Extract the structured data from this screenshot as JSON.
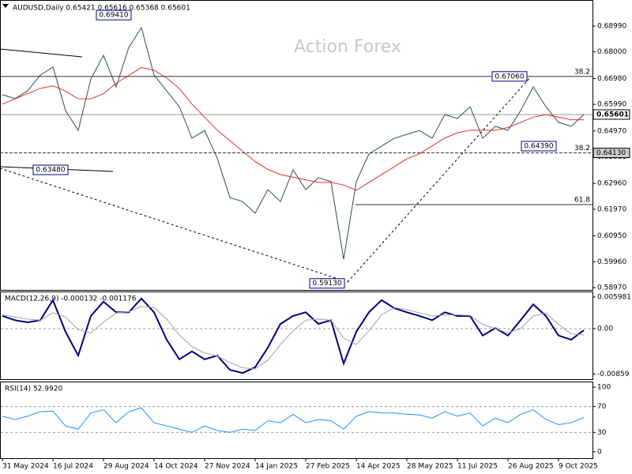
{
  "chart_data": [
    {
      "type": "line",
      "title": "AUDUSD,Daily 0.65421 0.65616 0.65368 0.65601",
      "watermark": "Action Forex",
      "categories": [
        "31 May 2024",
        null,
        null,
        null,
        "16 Jul 2024",
        null,
        null,
        null,
        "29 Aug 2024",
        null,
        null,
        null,
        "14 Oct 2024",
        null,
        null,
        null,
        "27 Nov 2024",
        null,
        null,
        null,
        "14 Jan 2025",
        null,
        null,
        null,
        "27 Feb 2025",
        null,
        null,
        null,
        "14 Apr 2025",
        null,
        null,
        null,
        "28 May 2025",
        null,
        null,
        null,
        "11 Jul 2025",
        null,
        null,
        null,
        "26 Aug 2025",
        null,
        null,
        null,
        "9 Oct 2025",
        null,
        null
      ],
      "series": [
        {
          "color": "#2f4f4f",
          "values": [
            0.6636,
            0.6621,
            0.6651,
            0.6711,
            0.6742,
            0.6575,
            0.6499,
            0.6696,
            0.6787,
            0.6666,
            0.6817,
            0.6893,
            0.6711,
            0.6651,
            0.659,
            0.6469,
            0.6499,
            0.6393,
            0.6242,
            0.6227,
            0.6182,
            0.6272,
            0.6227,
            0.6348,
            0.6272,
            0.6318,
            0.6303,
            0.6005,
            0.6303,
            0.6409,
            0.6439,
            0.6469,
            0.6484,
            0.6499,
            0.6469,
            0.656,
            0.6545,
            0.659,
            0.6469,
            0.6515,
            0.6499,
            0.6575,
            0.6666,
            0.659,
            0.653,
            0.6515,
            0.656
          ]
        },
        {
          "color": "#e03030",
          "values": [
            0.66,
            0.662,
            0.664,
            0.666,
            0.667,
            0.665,
            0.662,
            0.662,
            0.664,
            0.668,
            0.671,
            0.674,
            0.673,
            0.67,
            0.666,
            0.66,
            0.655,
            0.65,
            0.646,
            0.642,
            0.638,
            0.635,
            0.633,
            0.632,
            0.631,
            0.63,
            0.63,
            0.629,
            0.627,
            0.63,
            0.633,
            0.636,
            0.639,
            0.641,
            0.644,
            0.647,
            0.649,
            0.65,
            0.65,
            0.65,
            0.651,
            0.653,
            0.655,
            0.656,
            0.655,
            0.654,
            0.654
          ]
        }
      ],
      "ylim": [
        0.5888,
        0.69989
      ],
      "yticks": [
        {
          "value": 0.6899,
          "label": "0.68990"
        },
        {
          "value": 0.68,
          "label": "0.68000"
        },
        {
          "value": 0.6698,
          "label": "0.66980"
        },
        {
          "value": 0.6599,
          "label": "0.65990"
        },
        {
          "value": 0.6497,
          "label": "0.64970"
        },
        {
          "value": 0.6398,
          "label": "0.63980"
        },
        {
          "value": 0.6296,
          "label": "0.62960"
        },
        {
          "value": 0.6197,
          "label": "0.61970"
        },
        {
          "value": 0.6095,
          "label": "0.60950"
        },
        {
          "value": 0.5996,
          "label": "0.59960"
        },
        {
          "value": 0.5897,
          "label": "0.58970"
        }
      ],
      "levels": [
        {
          "value": 0.6706,
          "label": "38.2"
        },
        {
          "value": 0.6413,
          "label": "38.2"
        },
        {
          "value": 0.6215,
          "label": "61.8"
        }
      ],
      "annotations": [
        {
          "value": 0.6941,
          "label": "0.69410"
        },
        {
          "value": 0.6348,
          "label": "0.63480"
        },
        {
          "value": 0.5913,
          "label": "0.59130"
        },
        {
          "value": 0.6706,
          "label": "0.67060"
        },
        {
          "value": 0.6439,
          "label": "0.64390"
        }
      ],
      "axis_markers": [
        {
          "value": 0.65601,
          "label": "0.65601"
        },
        {
          "value": 0.6413,
          "label": "0.64130"
        }
      ]
    },
    {
      "type": "line",
      "title": "MACD(12,26,9) -0.000132 -0.001176",
      "series": [
        {
          "color": "#000080",
          "values": [
            0.0024,
            0.0016,
            0.0012,
            0.0016,
            0.0054,
            -0.0006,
            -0.0051,
            0.0024,
            0.0051,
            0.0031,
            0.0031,
            0.0057,
            0.0031,
            -0.0021,
            -0.0058,
            -0.0043,
            -0.0058,
            -0.0051,
            -0.0078,
            -0.0084,
            -0.0073,
            -0.0036,
            0.0009,
            0.0024,
            0.0031,
            0.0009,
            0.0016,
            -0.0066,
            -0.0006,
            0.0031,
            0.0054,
            0.0039,
            0.0031,
            0.0024,
            0.0016,
            0.0031,
            0.0024,
            0.0024,
            -0.0013,
            0.0001,
            -0.0013,
            0.0016,
            0.0046,
            0.0024,
            -0.0013,
            -0.0021,
            -0.0003
          ]
        },
        {
          "color": "#a0a0a0",
          "values": [
            0.0026,
            0.0022,
            0.0018,
            0.0016,
            0.003,
            0.0022,
            -0.0002,
            -0.0008,
            0.0012,
            0.003,
            0.0032,
            0.0042,
            0.004,
            0.0018,
            -0.0012,
            -0.0034,
            -0.0046,
            -0.0052,
            -0.0064,
            -0.0074,
            -0.0076,
            -0.006,
            -0.003,
            -0.0004,
            0.0016,
            0.0018,
            0.0016,
            -0.0018,
            -0.003,
            -0.0004,
            0.0026,
            0.004,
            0.0036,
            0.003,
            0.0024,
            0.0026,
            0.0026,
            0.0025,
            0.0008,
            0.0,
            -0.0008,
            0.0,
            0.0024,
            0.003,
            0.0008,
            -0.001,
            -0.0012
          ]
        }
      ],
      "ylim": [
        -0.00957,
        0.00688
      ],
      "yticks": [
        {
          "value": 0.005981,
          "label": "0.005981"
        },
        {
          "value": 0,
          "label": "0.00"
        },
        {
          "value": -0.00859,
          "label": "-0.00859"
        }
      ]
    },
    {
      "type": "line",
      "title": "RSI(14) 52.9920",
      "series": [
        {
          "color": "#1e90ff",
          "values": [
            55,
            50,
            55,
            62,
            63,
            40,
            35,
            60,
            65,
            45,
            62,
            68,
            45,
            40,
            35,
            30,
            40,
            33,
            30,
            35,
            33,
            48,
            45,
            58,
            45,
            50,
            48,
            35,
            55,
            62,
            60,
            60,
            58,
            57,
            52,
            62,
            55,
            60,
            40,
            52,
            45,
            58,
            65,
            50,
            42,
            45,
            53
          ]
        }
      ],
      "ylim": [
        -9.9,
        107.4
      ],
      "yticks": [
        100,
        70,
        30,
        0
      ]
    }
  ]
}
